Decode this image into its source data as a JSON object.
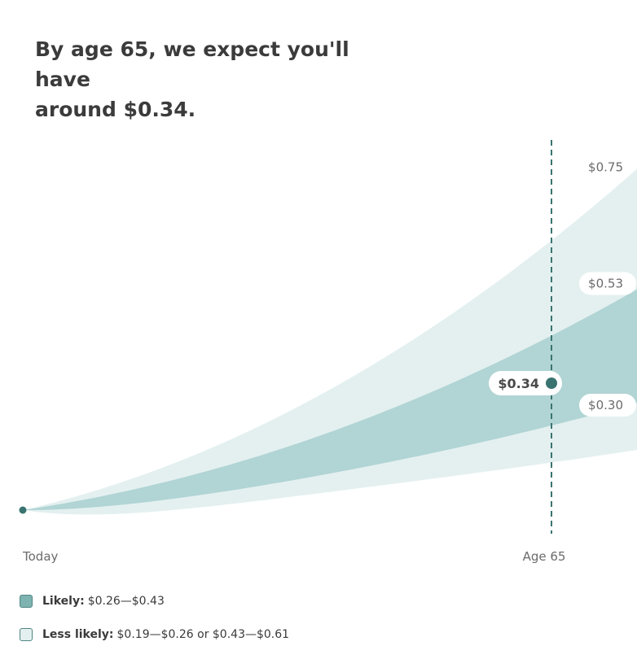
{
  "headline": {
    "line1": "By age 65, we expect you'll have",
    "line2": "around $0.34."
  },
  "chart_data": {
    "type": "area",
    "title": "By age 65, we expect you'll have around $0.34.",
    "x_labels": [
      "Today",
      "Age 65"
    ],
    "start_value": 0.1,
    "marker": {
      "label": "Age 65",
      "value": 0.34,
      "value_label": "$0.34"
    },
    "bands": [
      {
        "name": "Less likely",
        "lower_at_marker": 0.19,
        "upper_at_marker": 0.61
      },
      {
        "name": "Likely",
        "lower_at_marker": 0.26,
        "upper_at_marker": 0.43
      }
    ],
    "edge_labels": [
      "$0.75",
      "$0.53",
      "$0.30"
    ],
    "edge_values": [
      0.75,
      0.53,
      0.3
    ],
    "colors": {
      "likely": "#b1d4d4",
      "less_likely": "#e4f0f0",
      "marker": "#3a7470"
    }
  },
  "legend": {
    "likely": {
      "label": "Likely:",
      "range": "$0.26—$0.43"
    },
    "less_likely": {
      "label": "Less likely:",
      "range": "$0.19—$0.26 or $0.43—$0.61"
    }
  }
}
